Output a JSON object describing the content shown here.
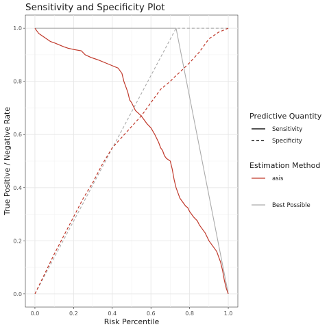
{
  "chart_data": {
    "type": "line",
    "title": "Sensitivity and Specificity Plot",
    "xlabel": "Risk Percentile",
    "ylabel": "True Positive / Negative Rate",
    "xlim": [
      0,
      1
    ],
    "ylim": [
      0,
      1
    ],
    "x_ticks": [
      "0.0",
      "0.2",
      "0.4",
      "0.6",
      "0.8",
      "1.0"
    ],
    "y_ticks": [
      "0.0",
      "0.2",
      "0.4",
      "0.6",
      "0.8",
      "1.0"
    ],
    "grid": true,
    "legend_position": "right",
    "legend": {
      "quantity_title": "Predictive Quantity",
      "quantity_items": [
        {
          "label": "Sensitivity",
          "linetype": "solid"
        },
        {
          "label": "Specificity",
          "linetype": "dashed"
        }
      ],
      "method_title": "Estimation Method",
      "method_items": [
        {
          "label": "asis",
          "color": "#c0392b"
        },
        {
          "label": "Best Possible",
          "color": "#aaaaaa"
        }
      ]
    },
    "series": [
      {
        "name": "asis",
        "quantity": "Sensitivity",
        "color": "#c0392b",
        "linetype": "solid",
        "x": [
          0.0,
          0.01,
          0.02,
          0.06,
          0.08,
          0.1,
          0.15,
          0.17,
          0.2,
          0.24,
          0.26,
          0.29,
          0.31,
          0.33,
          0.38,
          0.43,
          0.45,
          0.46,
          0.47,
          0.48,
          0.49,
          0.5,
          0.52,
          0.55,
          0.57,
          0.58,
          0.6,
          0.62,
          0.64,
          0.65,
          0.66,
          0.67,
          0.68,
          0.7,
          0.71,
          0.72,
          0.73,
          0.74,
          0.75,
          0.76,
          0.77,
          0.78,
          0.79,
          0.8,
          0.82,
          0.84,
          0.85,
          0.86,
          0.88,
          0.9,
          0.92,
          0.94,
          0.95,
          0.96,
          0.97,
          0.98,
          0.99,
          1.0
        ],
        "y": [
          1.0,
          0.99,
          0.98,
          0.96,
          0.95,
          0.945,
          0.93,
          0.925,
          0.92,
          0.915,
          0.9,
          0.89,
          0.885,
          0.88,
          0.865,
          0.85,
          0.83,
          0.8,
          0.78,
          0.76,
          0.73,
          0.72,
          0.69,
          0.67,
          0.65,
          0.64,
          0.625,
          0.6,
          0.57,
          0.55,
          0.54,
          0.52,
          0.51,
          0.5,
          0.47,
          0.43,
          0.4,
          0.38,
          0.36,
          0.35,
          0.34,
          0.33,
          0.325,
          0.31,
          0.29,
          0.275,
          0.26,
          0.25,
          0.23,
          0.2,
          0.18,
          0.16,
          0.14,
          0.12,
          0.09,
          0.05,
          0.02,
          0.0
        ]
      },
      {
        "name": "asis",
        "quantity": "Specificity",
        "color": "#c0392b",
        "linetype": "dashed",
        "x": [
          0.0,
          0.05,
          0.1,
          0.15,
          0.2,
          0.25,
          0.3,
          0.35,
          0.4,
          0.45,
          0.5,
          0.55,
          0.6,
          0.65,
          0.7,
          0.72,
          0.75,
          0.8,
          0.85,
          0.9,
          0.95,
          1.0
        ],
        "y": [
          0.0,
          0.075,
          0.15,
          0.22,
          0.29,
          0.36,
          0.42,
          0.49,
          0.55,
          0.59,
          0.63,
          0.67,
          0.72,
          0.77,
          0.8,
          0.815,
          0.835,
          0.87,
          0.91,
          0.96,
          0.985,
          1.0
        ]
      },
      {
        "name": "Best Possible",
        "quantity": "Sensitivity",
        "color": "#aaaaaa",
        "linetype": "solid",
        "x": [
          0.0,
          0.73,
          1.0
        ],
        "y": [
          1.0,
          1.0,
          0.0
        ]
      },
      {
        "name": "Best Possible",
        "quantity": "Specificity",
        "color": "#aaaaaa",
        "linetype": "dashed",
        "x": [
          0.0,
          0.73,
          1.0
        ],
        "y": [
          0.0,
          1.0,
          1.0
        ]
      }
    ]
  }
}
